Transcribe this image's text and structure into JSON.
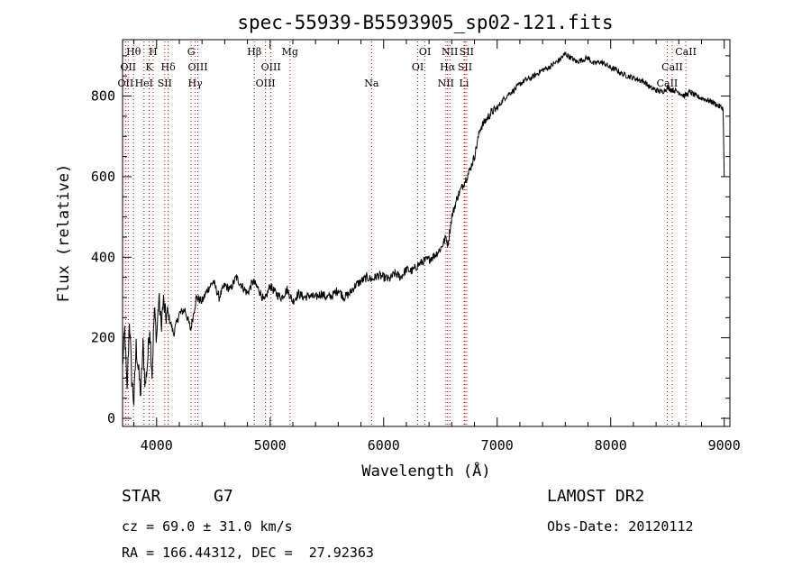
{
  "chart_data": {
    "type": "line",
    "title": "spec-55939-B5593905_sp02-121.fits",
    "xlabel": "Wavelength (Å)",
    "ylabel": "Flux (relative)",
    "xlim": [
      3700,
      9050
    ],
    "ylim": [
      -20,
      940
    ],
    "xticks": [
      4000,
      5000,
      6000,
      7000,
      8000,
      9000
    ],
    "yticks": [
      0,
      200,
      400,
      600,
      800
    ],
    "grid": false,
    "series": [
      {
        "color": "#000000",
        "x": [
          3700,
          3720,
          3740,
          3760,
          3780,
          3800,
          3820,
          3840,
          3860,
          3880,
          3900,
          3920,
          3940,
          3960,
          3980,
          4000,
          4020,
          4040,
          4060,
          4080,
          4100,
          4150,
          4200,
          4250,
          4300,
          4350,
          4400,
          4450,
          4500,
          4550,
          4600,
          4650,
          4700,
          4750,
          4800,
          4850,
          4900,
          4950,
          5000,
          5050,
          5100,
          5150,
          5200,
          5250,
          5300,
          5350,
          5400,
          5450,
          5500,
          5550,
          5600,
          5650,
          5700,
          5750,
          5800,
          5850,
          5900,
          5950,
          6000,
          6050,
          6100,
          6150,
          6200,
          6250,
          6300,
          6350,
          6400,
          6450,
          6500,
          6550,
          6565,
          6600,
          6650,
          6700,
          6750,
          6800,
          6850,
          6900,
          6950,
          7000,
          7050,
          7100,
          7150,
          7200,
          7250,
          7300,
          7350,
          7400,
          7450,
          7500,
          7550,
          7600,
          7650,
          7700,
          7750,
          7800,
          7850,
          7900,
          7950,
          8000,
          8050,
          8100,
          8150,
          8200,
          8250,
          8300,
          8350,
          8400,
          8450,
          8500,
          8550,
          8600,
          8650,
          8700,
          8750,
          8800,
          8850,
          8900,
          8950,
          8990,
          9000
        ],
        "values": [
          130,
          220,
          60,
          250,
          100,
          40,
          180,
          120,
          60,
          180,
          80,
          140,
          230,
          110,
          270,
          200,
          300,
          230,
          290,
          250,
          260,
          210,
          260,
          270,
          220,
          300,
          290,
          320,
          340,
          300,
          330,
          320,
          350,
          330,
          310,
          340,
          320,
          290,
          330,
          310,
          300,
          320,
          290,
          310,
          300,
          305,
          300,
          310,
          300,
          305,
          320,
          300,
          310,
          330,
          340,
          350,
          345,
          355,
          350,
          345,
          360,
          350,
          370,
          365,
          380,
          390,
          395,
          405,
          420,
          450,
          430,
          500,
          550,
          580,
          610,
          650,
          720,
          740,
          760,
          770,
          790,
          805,
          815,
          830,
          840,
          845,
          855,
          865,
          870,
          880,
          890,
          905,
          895,
          885,
          890,
          895,
          880,
          885,
          880,
          870,
          865,
          855,
          850,
          845,
          840,
          835,
          820,
          815,
          810,
          820,
          815,
          810,
          800,
          810,
          800,
          795,
          790,
          785,
          775,
          770,
          600
        ]
      }
    ],
    "line_markers": [
      {
        "x": 3727,
        "row": 2,
        "label": "OII",
        "color": "#cc0000"
      },
      {
        "x": 3750,
        "row": 1,
        "label": "OII",
        "color": "#cc0000"
      },
      {
        "x": 3797,
        "row": 0,
        "label": "Hθ",
        "color": "#cc0000"
      },
      {
        "x": 3889,
        "row": 2,
        "label": "HeI",
        "color": "#cc0000"
      },
      {
        "x": 3934,
        "row": 1,
        "label": "K",
        "color": "#cc0000"
      },
      {
        "x": 3969,
        "row": 0,
        "label": "H",
        "color": "#cc0000"
      },
      {
        "x": 4072,
        "row": 2,
        "label": "SII",
        "color": "#cc0000"
      },
      {
        "x": 4102,
        "row": 1,
        "label": "Hδ",
        "color": "#cc0000"
      },
      {
        "x": 4304,
        "row": 0,
        "label": "G",
        "color": "#cc0000"
      },
      {
        "x": 4340,
        "row": 2,
        "label": "Hγ",
        "color": "#cc0000"
      },
      {
        "x": 4363,
        "row": 1,
        "label": "OIII",
        "color": "#cc0000"
      },
      {
        "x": 4861,
        "row": 0,
        "label": "Hβ",
        "color": "#cc0000"
      },
      {
        "x": 4959,
        "row": 2,
        "label": "OIII",
        "color": "#cc0000"
      },
      {
        "x": 5007,
        "row": 1,
        "label": "OIII",
        "color": "#cc0000"
      },
      {
        "x": 5175,
        "row": 0,
        "label": "Mg",
        "color": "#cc0000"
      },
      {
        "x": 5894,
        "row": 2,
        "label": "Na",
        "color": "#cc0000"
      },
      {
        "x": 6300,
        "row": 1,
        "label": "OI",
        "color": "#cc0000"
      },
      {
        "x": 6364,
        "row": 0,
        "label": "OI",
        "color": "#cc0000"
      },
      {
        "x": 6548,
        "row": 2,
        "label": "NII",
        "color": "#cc0000"
      },
      {
        "x": 6563,
        "row": 1,
        "label": "Hα",
        "color": "#cc0000"
      },
      {
        "x": 6583,
        "row": 0,
        "label": "NII",
        "color": "#cc0000"
      },
      {
        "x": 6716,
        "row": 1,
        "label": "SII",
        "color": "#cc0000"
      },
      {
        "x": 6708,
        "row": 2,
        "label": "Li",
        "color": "#cc0000"
      },
      {
        "x": 6731,
        "row": 0,
        "label": "SII",
        "color": "#cc0000"
      },
      {
        "x": 8498,
        "row": 2,
        "label": "CaII",
        "color": "#cc0000"
      },
      {
        "x": 8542,
        "row": 1,
        "label": "CaII",
        "color": "#cc0000"
      },
      {
        "x": 8662,
        "row": 0,
        "label": "CaII",
        "color": "#cc0000"
      }
    ]
  },
  "info": {
    "object_type": "STAR",
    "subclass": "G7",
    "survey": "LAMOST DR2",
    "cz": "cz = 69.0 ± 31.0 km/s",
    "obs_date": "Obs-Date: 20120112",
    "coords": "RA = 166.44312, DEC =  27.92363"
  }
}
